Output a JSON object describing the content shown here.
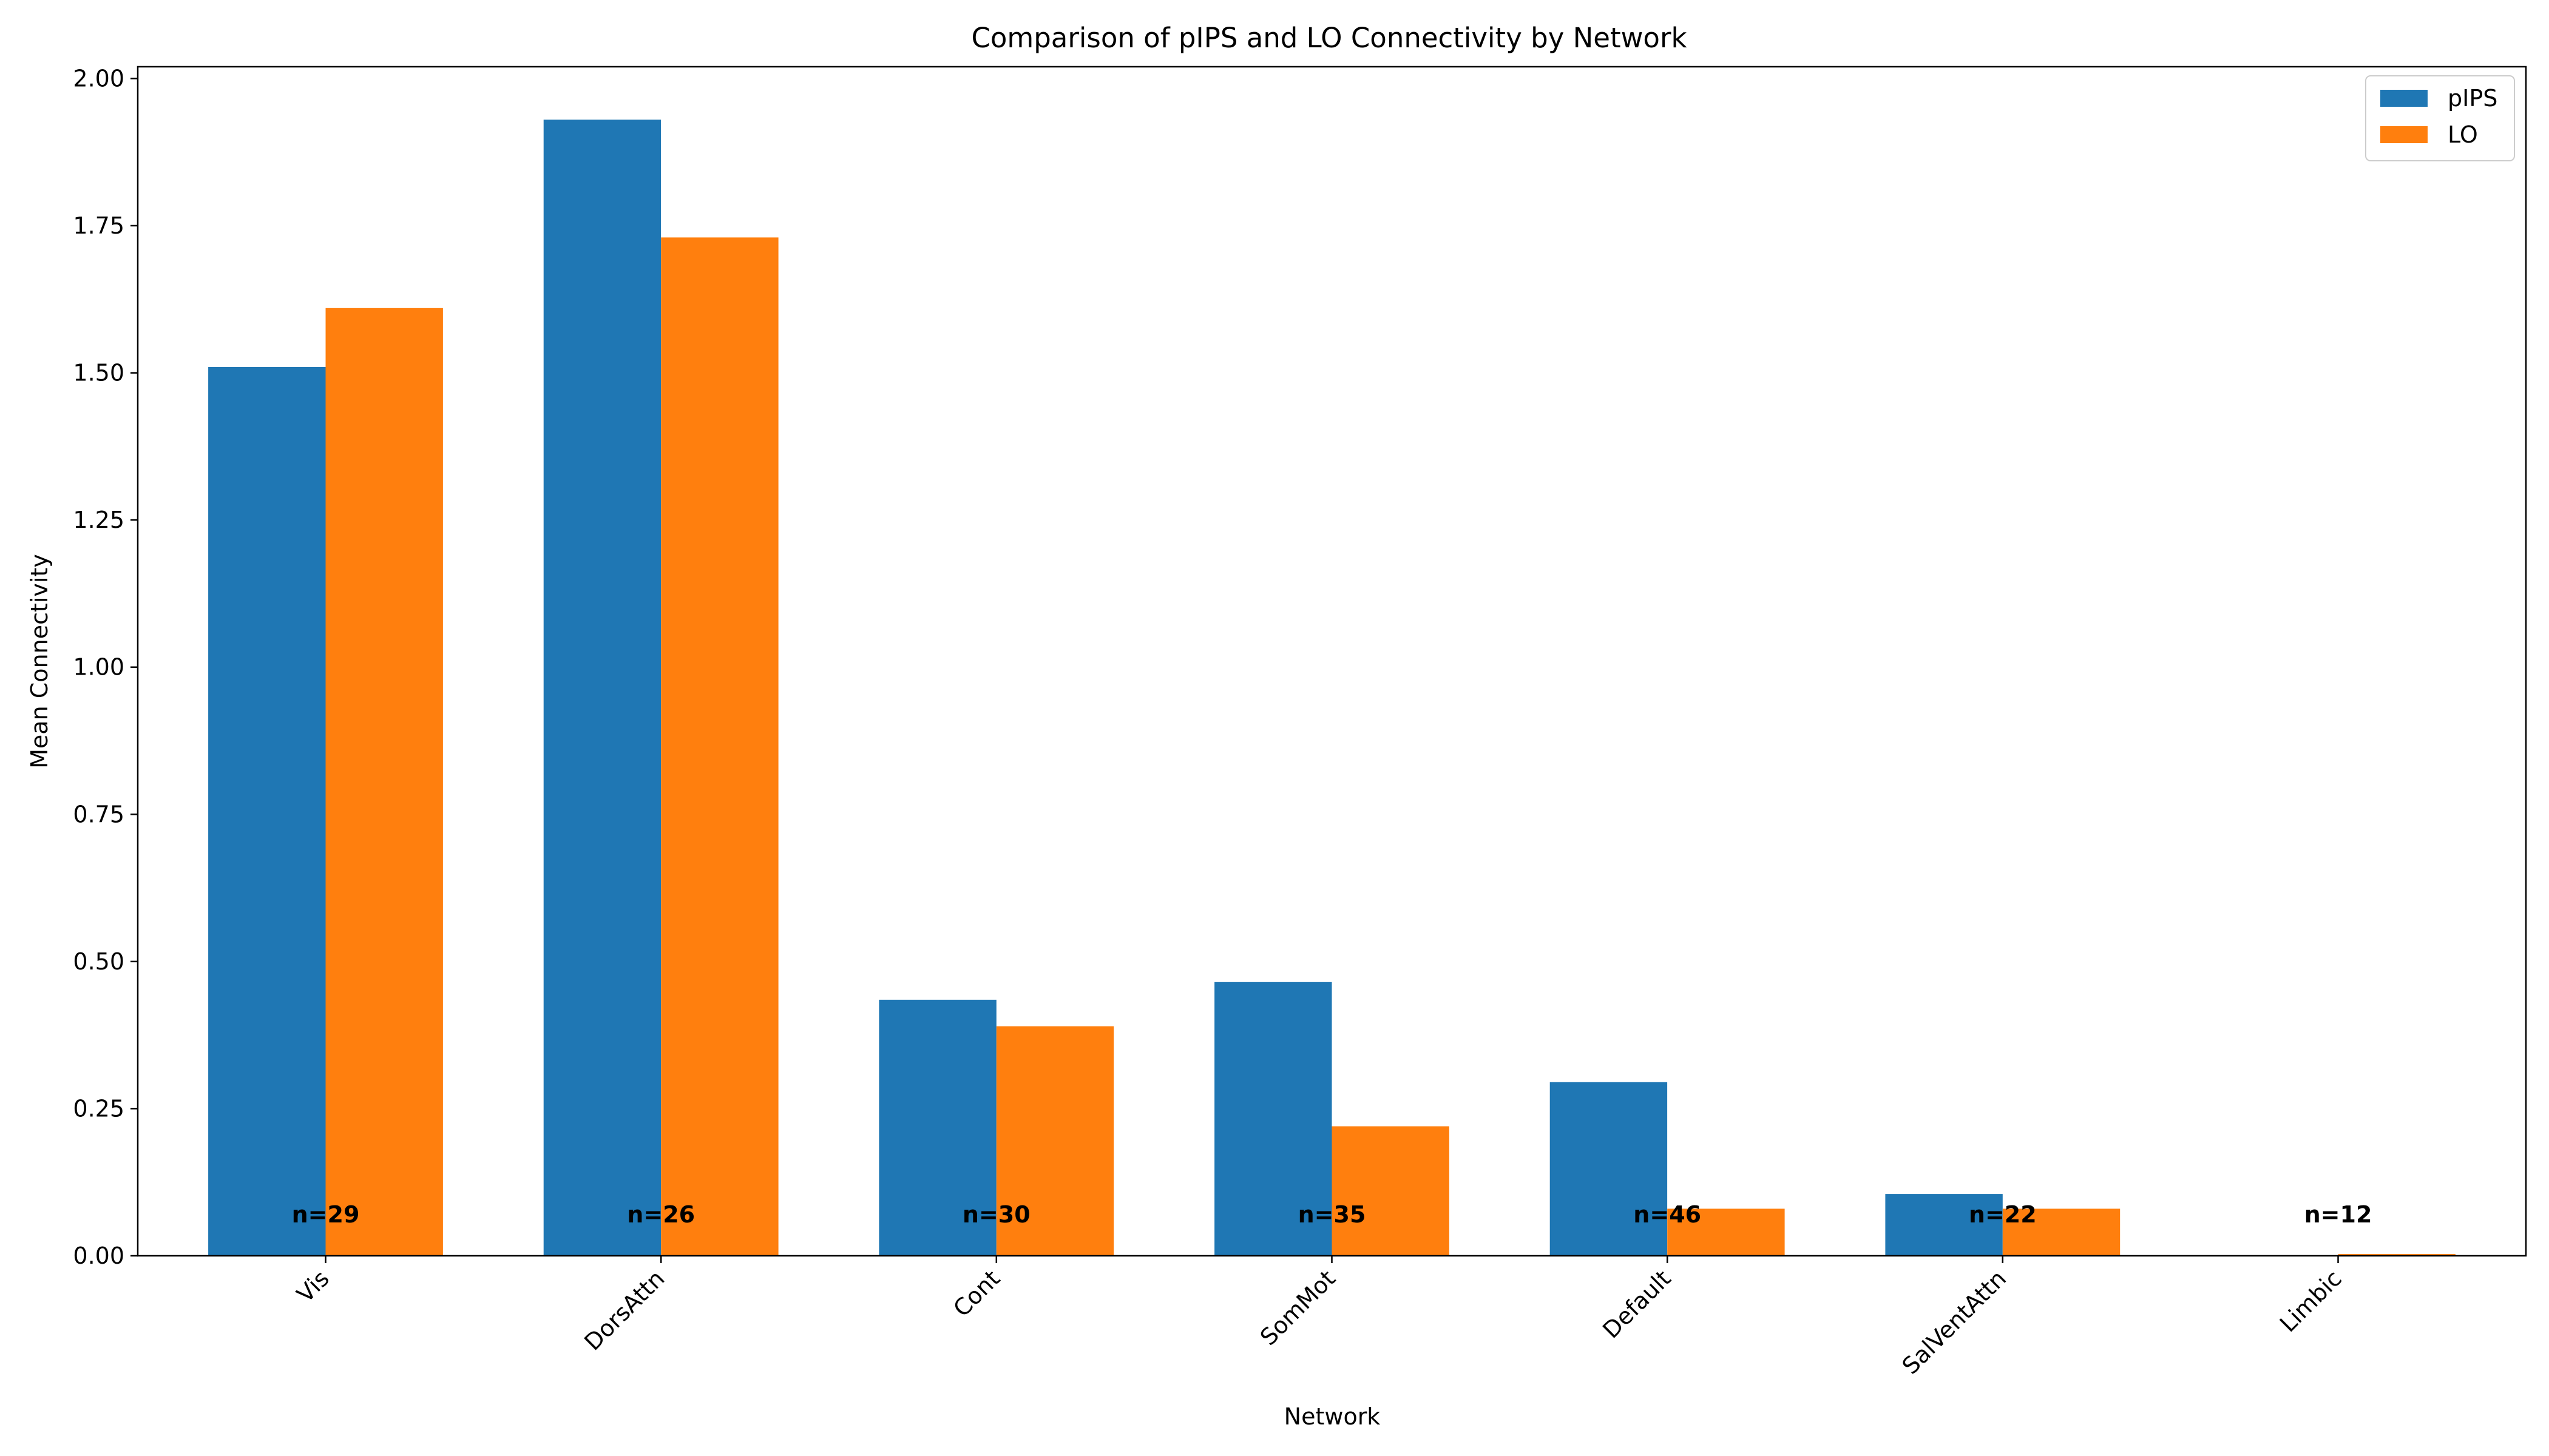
{
  "chart_data": {
    "type": "bar",
    "title": "Comparison of pIPS and LO Connectivity by Network",
    "xlabel": "Network",
    "ylabel": "Mean Connectivity",
    "ylim": [
      0,
      2.02
    ],
    "yticks": [
      "0.00",
      "0.25",
      "0.50",
      "0.75",
      "1.00",
      "1.25",
      "1.50",
      "1.75",
      "2.00"
    ],
    "categories": [
      "Vis",
      "DorsAttn",
      "Cont",
      "SomMot",
      "Default",
      "SalVentAttn",
      "Limbic"
    ],
    "series": [
      {
        "name": "pIPS",
        "color": "#1f77b4",
        "values": [
          1.51,
          1.93,
          0.435,
          0.465,
          0.295,
          0.105,
          0.0
        ]
      },
      {
        "name": "LO",
        "color": "#ff7f0e",
        "values": [
          1.61,
          1.73,
          0.39,
          0.22,
          0.08,
          0.08,
          0.003
        ]
      }
    ],
    "annotations": [
      "n=29",
      "n=26",
      "n=30",
      "n=35",
      "n=46",
      "n=22",
      "n=12"
    ],
    "annotation_y": 0.07,
    "legend_position": "top-right",
    "grid": false
  }
}
